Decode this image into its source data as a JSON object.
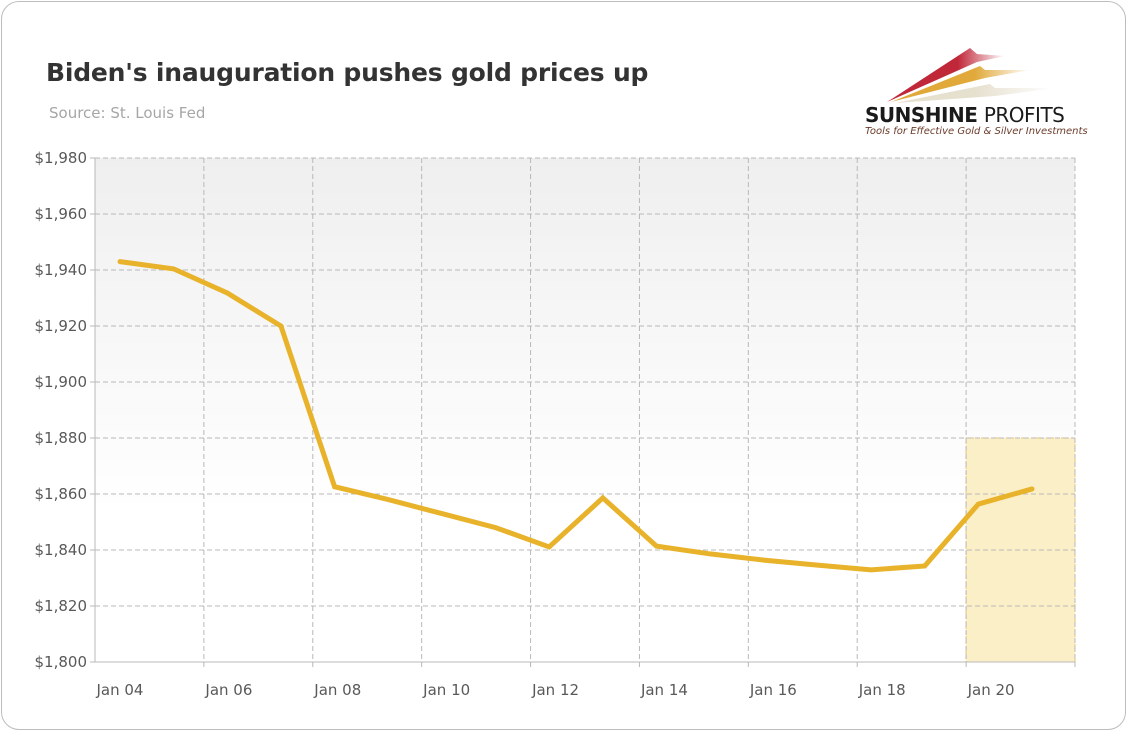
{
  "header": {
    "title": "Biden's inauguration pushes gold prices up",
    "subtitle": "Source: St. Louis Fed"
  },
  "logo": {
    "name_bold": "SUNSHINE",
    "name_light": "PROFITS",
    "tagline": "Tools for Effective Gold & Silver Investments"
  },
  "chart_data": {
    "type": "line",
    "title": "Biden's inauguration pushes gold prices up",
    "xlabel": "",
    "ylabel": "",
    "categories": [
      "Jan 04",
      "Jan 05",
      "Jan 06",
      "Jan 07",
      "Jan 08",
      "Jan 09",
      "Jan 10",
      "Jan 11",
      "Jan 12",
      "Jan 13",
      "Jan 14",
      "Jan 15",
      "Jan 16",
      "Jan 17",
      "Jan 18",
      "Jan 19",
      "Jan 20",
      "Jan 21"
    ],
    "x_tick_labels": [
      "Jan 04",
      "Jan 06",
      "Jan 08",
      "Jan 10",
      "Jan 12",
      "Jan 14",
      "Jan 16",
      "Jan 18",
      "Jan 20"
    ],
    "series": [
      {
        "name": "Gold price",
        "color": "#e8b32a",
        "values": [
          1943.0,
          1940.4,
          1931.8,
          1920.0,
          1862.6,
          1858.0,
          1853.0,
          1848.0,
          1841.1,
          1858.6,
          1841.4,
          1838.6,
          1836.4,
          1834.6,
          1832.9,
          1834.3,
          1856.4,
          1861.8
        ]
      }
    ],
    "ylim": [
      1800,
      1980
    ],
    "y_ticks": [
      1800,
      1820,
      1840,
      1860,
      1880,
      1900,
      1920,
      1940,
      1960,
      1980
    ],
    "y_tick_labels": [
      "$1,800",
      "$1,820",
      "$1,840",
      "$1,860",
      "$1,880",
      "$1,900",
      "$1,920",
      "$1,940",
      "$1,960",
      "$1,980"
    ],
    "grid": true,
    "highlight": {
      "from_category": "Jan 20",
      "to_category": "Jan 21",
      "y_top": 1880,
      "color": "#fbefc8",
      "label": ""
    }
  }
}
